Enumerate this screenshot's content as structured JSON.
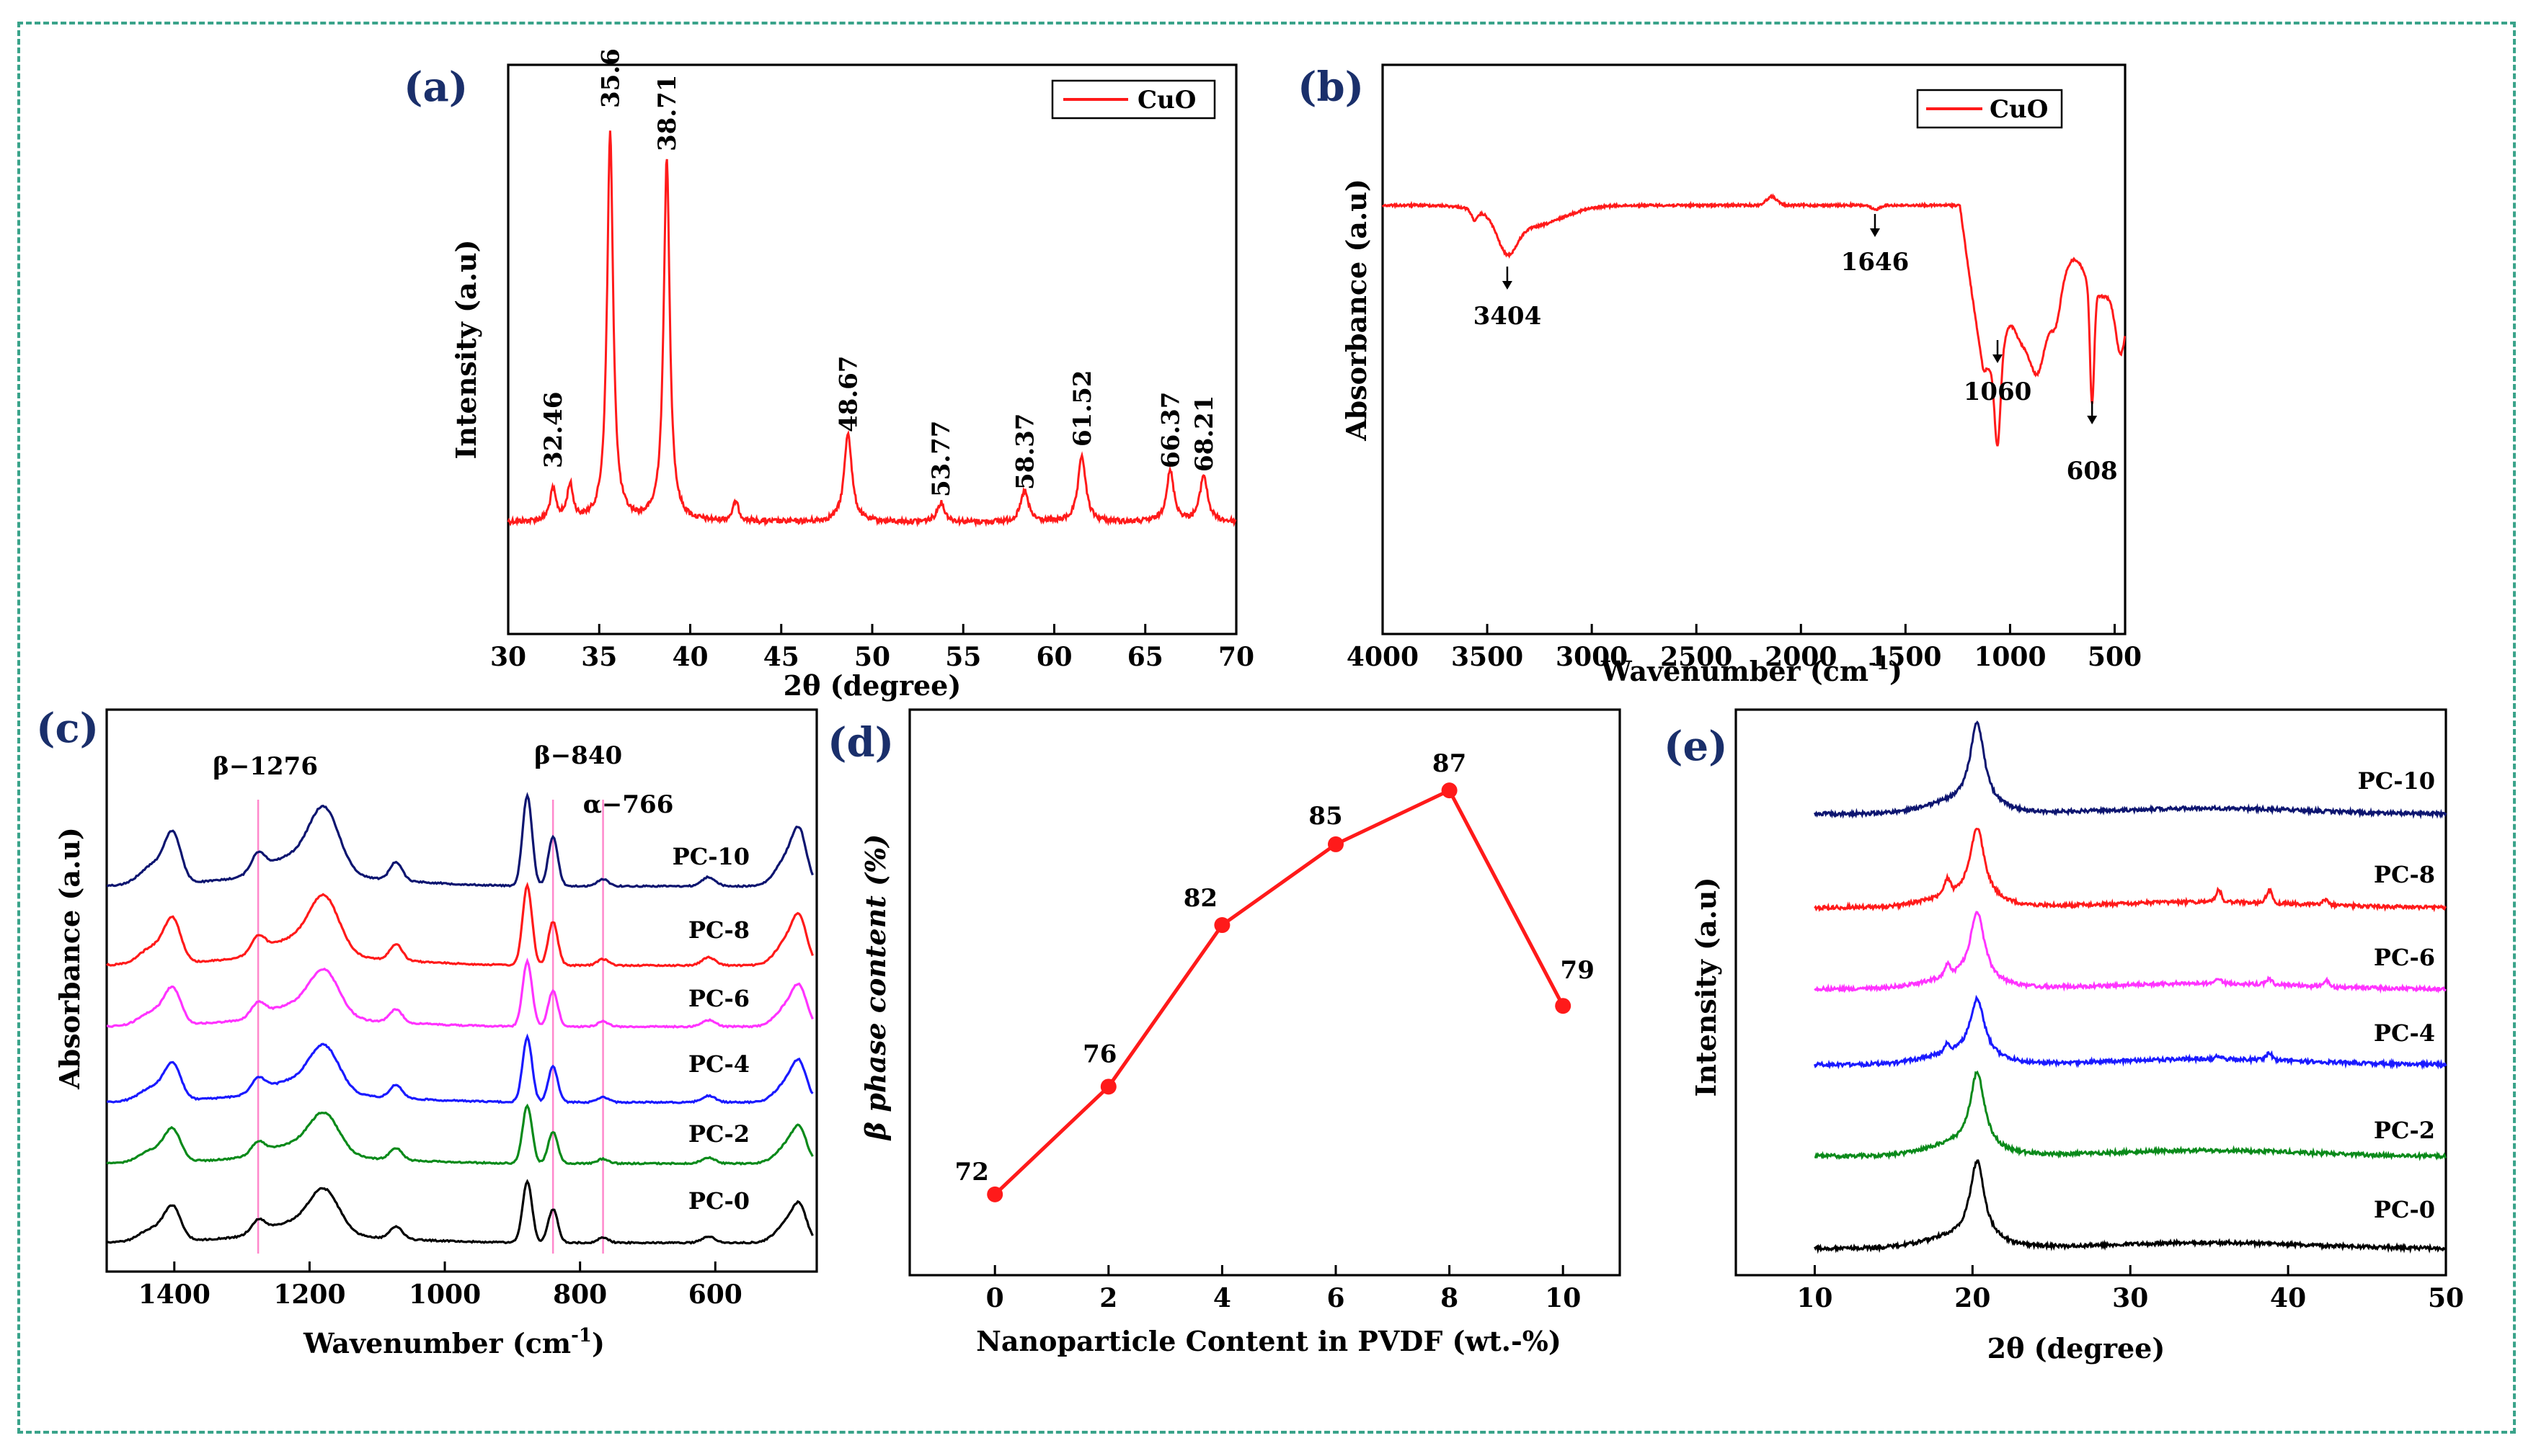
{
  "colors": {
    "frame": "#3aa38a",
    "panel_letter": "#1a2f6b",
    "PC-10": "#0d1570",
    "PC-8": "#ff1a1a",
    "PC-6": "#ff33ff",
    "PC-4": "#1a1aff",
    "PC-2": "#0a8a1a",
    "PC-0": "#000000",
    "guide": "#ff88cc"
  },
  "chart_data": [
    {
      "panel": "(a)",
      "type": "line",
      "xlabel": "2θ (degree)",
      "ylabel": "Intensity (a.u)",
      "xlim": [
        30,
        70
      ],
      "xticks": [
        30,
        35,
        40,
        45,
        50,
        55,
        60,
        65,
        70
      ],
      "legend": "top-right",
      "series": [
        {
          "name": "CuO",
          "color": "#ff1a1a",
          "peaks": [
            {
              "x": 32.46,
              "h": 0.08
            },
            {
              "x": 33.4,
              "h": 0.09
            },
            {
              "x": 35.6,
              "h": 1.0
            },
            {
              "x": 38.71,
              "h": 0.93
            },
            {
              "x": 42.5,
              "h": 0.05
            },
            {
              "x": 48.67,
              "h": 0.23
            },
            {
              "x": 53.77,
              "h": 0.05
            },
            {
              "x": 58.37,
              "h": 0.08
            },
            {
              "x": 61.52,
              "h": 0.17
            },
            {
              "x": 66.37,
              "h": 0.13
            },
            {
              "x": 68.21,
              "h": 0.12
            }
          ]
        }
      ],
      "annotations": [
        "32.46",
        "35.6",
        "38.71",
        "48.67",
        "53.77",
        "58.37",
        "61.52",
        "66.37",
        "68.21"
      ]
    },
    {
      "panel": "(b)",
      "type": "line",
      "xlabel": "Wavenumber (cm",
      "xlabel_sup": "-1",
      "xlabel_end": ")",
      "ylabel": "Absorbance (a.u)",
      "xlim": [
        4000,
        450
      ],
      "xticks": [
        4000,
        3500,
        3000,
        2500,
        2000,
        1500,
        1000,
        500
      ],
      "legend": "top-right",
      "series": [
        {
          "name": "CuO",
          "color": "#ff1a1a"
        }
      ],
      "annotations": [
        {
          "text": "3404",
          "x": 3404
        },
        {
          "text": "1646",
          "x": 1646
        },
        {
          "text": "1060",
          "x": 1060
        },
        {
          "text": "608",
          "x": 608
        }
      ]
    },
    {
      "panel": "(c)",
      "type": "line",
      "xlabel": "Wavenumber (cm",
      "xlabel_sup": "-1",
      "xlabel_end": ")",
      "ylabel": "Absorbance (a.u)",
      "xlim": [
        1500,
        450
      ],
      "xticks": [
        1400,
        1200,
        1000,
        800,
        600
      ],
      "series": [
        "PC-10",
        "PC-8",
        "PC-6",
        "PC-4",
        "PC-2",
        "PC-0"
      ],
      "guides": [
        {
          "text": "β−1276",
          "x": 1276
        },
        {
          "text": "β−840",
          "x": 840
        },
        {
          "text": "α−766",
          "x": 766
        }
      ]
    },
    {
      "panel": "(d)",
      "type": "line",
      "xlabel": "Nanoparticle Content in PVDF (wt.-%)",
      "ylabel": "β phase content (%)",
      "xlim": [
        -1.5,
        11
      ],
      "ylim": [
        69,
        90
      ],
      "xticks": [
        0,
        2,
        4,
        6,
        8,
        10
      ],
      "x": [
        0,
        2,
        4,
        6,
        8,
        10
      ],
      "values": [
        72,
        76,
        82,
        85,
        87,
        79
      ],
      "labels": [
        "72",
        "76",
        "82",
        "85",
        "87",
        "79"
      ],
      "color": "#ff1a1a"
    },
    {
      "panel": "(e)",
      "type": "line",
      "xlabel": "2θ (degree)",
      "ylabel": "Intensity (a.u)",
      "xlim": [
        5,
        50
      ],
      "xticks": [
        10,
        20,
        30,
        40,
        50
      ],
      "series": [
        "PC-10",
        "PC-8",
        "PC-6",
        "PC-4",
        "PC-2",
        "PC-0"
      ]
    }
  ]
}
